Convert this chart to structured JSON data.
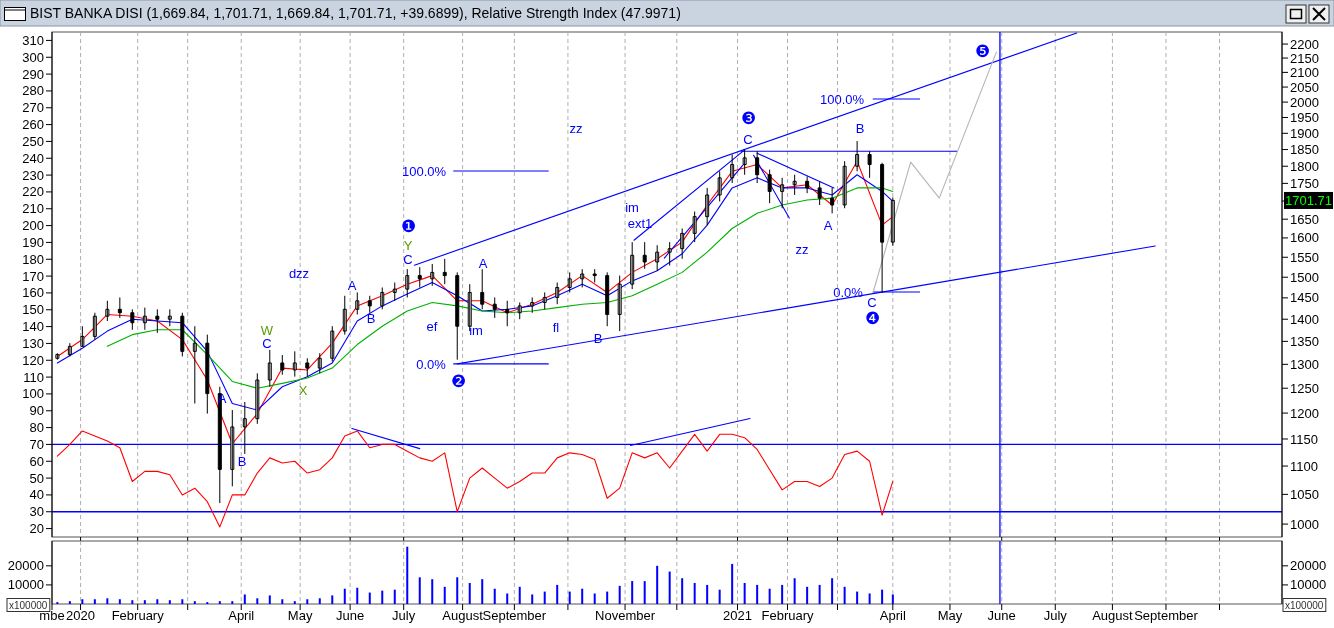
{
  "chart_data": [
    {
      "type": "candlestick",
      "title": "BIST BANKA DISI (1,669.84, 1,701.71, 1,669.84, 1,701.71, +39.6899), Relative Strength Index (47.9971)",
      "x": [
        "2019-12-20",
        "2019-12-27",
        "2020-01-03",
        "2020-01-10",
        "2020-01-17",
        "2020-01-24",
        "2020-01-31",
        "2020-02-07",
        "2020-02-14",
        "2020-02-21",
        "2020-02-28",
        "2020-03-06",
        "2020-03-13",
        "2020-03-20",
        "2020-03-27",
        "2020-04-03",
        "2020-04-10",
        "2020-04-17",
        "2020-04-24",
        "2020-05-01",
        "2020-05-08",
        "2020-05-15",
        "2020-05-22",
        "2020-05-29",
        "2020-06-05",
        "2020-06-12",
        "2020-06-19",
        "2020-06-26",
        "2020-07-03",
        "2020-07-10",
        "2020-07-17",
        "2020-07-24",
        "2020-07-31",
        "2020-08-07",
        "2020-08-14",
        "2020-08-21",
        "2020-08-28",
        "2020-09-04",
        "2020-09-11",
        "2020-09-18",
        "2020-09-25",
        "2020-10-02",
        "2020-10-09",
        "2020-10-16",
        "2020-10-23",
        "2020-10-30",
        "2020-11-06",
        "2020-11-13",
        "2020-11-20",
        "2020-11-27",
        "2020-12-04",
        "2020-12-11",
        "2020-12-18",
        "2020-12-25",
        "2021-01-01",
        "2021-01-08",
        "2021-01-15",
        "2021-01-22",
        "2021-01-29",
        "2021-02-05",
        "2021-02-12",
        "2021-02-19",
        "2021-02-26",
        "2021-03-05",
        "2021-03-12",
        "2021-03-19",
        "2021-03-26",
        "2021-04-01"
      ],
      "xlim": [
        "2019-12-17",
        "2021-11-05"
      ],
      "xticks": [
        "2020-01-02",
        "2020-02-03",
        "2020-03-02",
        "2020-04-01",
        "2020-05-04",
        "2020-06-01",
        "2020-07-01",
        "2020-08-03",
        "2020-09-01",
        "2020-10-01",
        "2020-11-02",
        "2020-12-01",
        "2021-01-04",
        "2021-02-01",
        "2021-03-01",
        "2021-04-01",
        "2021-05-03",
        "2021-06-01",
        "2021-07-01",
        "2021-08-02",
        "2021-09-01",
        "2021-10-01"
      ],
      "ylim": [
        15,
        315
      ],
      "yticks": [
        20,
        30,
        40,
        50,
        60,
        70,
        80,
        90,
        100,
        110,
        120,
        130,
        140,
        150,
        160,
        170,
        180,
        190,
        200,
        210,
        220,
        230,
        240,
        250,
        260,
        270,
        280,
        290,
        300,
        310
      ],
      "y2lim": [
        979,
        2244
      ],
      "y2ticks": [
        1000,
        1050,
        1100,
        1150,
        1200,
        1250,
        1300,
        1350,
        1400,
        1450,
        1500,
        1550,
        1600,
        1650,
        {
          "value": 1700,
          "label": null
        },
        1750,
        1800,
        1850,
        1900,
        1950,
        2000,
        2050,
        2100,
        2150,
        2200
      ],
      "log": "y2",
      "grid": "x",
      "tick_labels": "y",
      "series": [
        {
          "type": "candlestick",
          "axis": "y2",
          "color": "#000000",
          "ohlc": [
            [
              1313,
              1324,
              1310,
              1321
            ],
            [
              1321,
              1346,
              1317,
              1339
            ],
            [
              1339,
              1384,
              1339,
              1361
            ],
            [
              1361,
              1415,
              1354,
              1407
            ],
            [
              1407,
              1443,
              1396,
              1423
            ],
            [
              1423,
              1451,
              1403,
              1415
            ],
            [
              1415,
              1423,
              1376,
              1392
            ],
            [
              1392,
              1427,
              1376,
              1407
            ],
            [
              1407,
              1423,
              1369,
              1400
            ],
            [
              1400,
              1423,
              1384,
              1407
            ],
            [
              1407,
              1415,
              1317,
              1328
            ],
            [
              1328,
              1384,
              1219,
              1346
            ],
            [
              1346,
              1365,
              1199,
              1239
            ],
            [
              1239,
              1253,
              1035,
              1094
            ],
            [
              1094,
              1206,
              1064,
              1173
            ],
            [
              1173,
              1222,
              1122,
              1189
            ],
            [
              1189,
              1281,
              1179,
              1267
            ],
            [
              1267,
              1331,
              1253,
              1303
            ],
            [
              1303,
              1320,
              1278,
              1288
            ],
            [
              1288,
              1328,
              1274,
              1303
            ],
            [
              1303,
              1313,
              1274,
              1292
            ],
            [
              1292,
              1324,
              1281,
              1313
            ],
            [
              1313,
              1384,
              1306,
              1373
            ],
            [
              1373,
              1455,
              1365,
              1423
            ],
            [
              1423,
              1463,
              1411,
              1443
            ],
            [
              1443,
              1455,
              1415,
              1431
            ],
            [
              1431,
              1475,
              1423,
              1463
            ],
            [
              1463,
              1487,
              1443,
              1471
            ],
            [
              1471,
              1520,
              1451,
              1504
            ],
            [
              1504,
              1525,
              1475,
              1496
            ],
            [
              1496,
              1533,
              1479,
              1512
            ],
            [
              1512,
              1546,
              1483,
              1504
            ],
            [
              1504,
              1512,
              1310,
              1384
            ],
            [
              1384,
              1483,
              1373,
              1463
            ],
            [
              1463,
              1520,
              1423,
              1435
            ],
            [
              1435,
              1451,
              1403,
              1423
            ],
            [
              1423,
              1443,
              1384,
              1415
            ],
            [
              1415,
              1439,
              1400,
              1431
            ],
            [
              1431,
              1451,
              1415,
              1439
            ],
            [
              1439,
              1463,
              1423,
              1451
            ],
            [
              1451,
              1487,
              1435,
              1475
            ],
            [
              1475,
              1512,
              1463,
              1496
            ],
            [
              1496,
              1520,
              1475,
              1508
            ],
            [
              1508,
              1520,
              1487,
              1504
            ],
            [
              1504,
              1512,
              1384,
              1411
            ],
            [
              1411,
              1504,
              1373,
              1483
            ],
            [
              1483,
              1589,
              1471,
              1555
            ],
            [
              1555,
              1589,
              1521,
              1538
            ],
            [
              1538,
              1581,
              1516,
              1563
            ],
            [
              1563,
              1589,
              1529,
              1572
            ],
            [
              1572,
              1625,
              1546,
              1612
            ],
            [
              1612,
              1671,
              1589,
              1657
            ],
            [
              1657,
              1737,
              1634,
              1717
            ],
            [
              1717,
              1785,
              1699,
              1766
            ],
            [
              1766,
              1835,
              1751,
              1805
            ],
            [
              1805,
              1850,
              1775,
              1825
            ],
            [
              1825,
              1845,
              1751,
              1775
            ],
            [
              1775,
              1790,
              1694,
              1727
            ],
            [
              1727,
              1766,
              1680,
              1746
            ],
            [
              1746,
              1775,
              1717,
              1756
            ],
            [
              1756,
              1770,
              1722,
              1737
            ],
            [
              1737,
              1756,
              1689,
              1708
            ],
            [
              1708,
              1737,
              1666,
              1689
            ],
            [
              1689,
              1815,
              1680,
              1800
            ],
            [
              1800,
              1876,
              1785,
              1835
            ],
            [
              1835,
              1845,
              1766,
              1805
            ],
            [
              1805,
              1810,
              1463,
              1589
            ],
            [
              1589,
              1710,
              1580,
              1701.71
            ]
          ]
        },
        {
          "type": "line",
          "axis": "y2",
          "color": "#ff0000",
          "x": [
            "2019-12-20",
            "2020-01-03",
            "2020-01-17",
            "2020-01-31",
            "2020-02-14",
            "2020-02-28",
            "2020-03-13",
            "2020-03-27",
            "2020-04-10",
            "2020-04-24",
            "2020-05-08",
            "2020-05-22",
            "2020-06-05",
            "2020-06-19",
            "2020-07-03",
            "2020-07-17",
            "2020-07-31",
            "2020-08-14",
            "2020-08-28",
            "2020-09-11",
            "2020-09-25",
            "2020-10-09",
            "2020-10-23",
            "2020-11-06",
            "2020-11-20",
            "2020-12-04",
            "2020-12-18",
            "2021-01-01",
            "2021-01-15",
            "2021-01-29",
            "2021-02-12",
            "2021-02-26",
            "2021-03-12",
            "2021-03-26",
            "2021-04-01"
          ],
          "values": [
            1317,
            1354,
            1411,
            1407,
            1396,
            1354,
            1267,
            1141,
            1199,
            1292,
            1288,
            1346,
            1431,
            1455,
            1483,
            1504,
            1443,
            1443,
            1415,
            1435,
            1463,
            1504,
            1463,
            1512,
            1546,
            1589,
            1689,
            1785,
            1805,
            1737,
            1746,
            1689,
            1815,
            1634,
            1657
          ]
        },
        {
          "type": "line",
          "axis": "y2",
          "color": "#0000ff",
          "x": [
            "2019-12-20",
            "2020-01-03",
            "2020-01-17",
            "2020-01-31",
            "2020-02-14",
            "2020-02-28",
            "2020-03-13",
            "2020-03-27",
            "2020-04-10",
            "2020-04-24",
            "2020-05-08",
            "2020-05-22",
            "2020-06-05",
            "2020-06-19",
            "2020-07-03",
            "2020-07-17",
            "2020-07-31",
            "2020-08-14",
            "2020-08-28",
            "2020-09-11",
            "2020-09-25",
            "2020-10-09",
            "2020-10-23",
            "2020-11-06",
            "2020-11-20",
            "2020-12-04",
            "2020-12-18",
            "2021-01-01",
            "2021-01-15",
            "2021-01-29",
            "2021-02-12",
            "2021-02-26",
            "2021-03-12",
            "2021-03-26",
            "2021-04-01"
          ],
          "values": [
            1303,
            1335,
            1373,
            1400,
            1396,
            1392,
            1328,
            1219,
            1206,
            1253,
            1274,
            1303,
            1396,
            1431,
            1459,
            1487,
            1455,
            1419,
            1423,
            1431,
            1455,
            1483,
            1455,
            1491,
            1516,
            1559,
            1634,
            1737,
            1766,
            1737,
            1737,
            1717,
            1775,
            1727,
            1699
          ]
        },
        {
          "type": "line",
          "axis": "y2",
          "color": "#00b000",
          "x": [
            "2020-01-17",
            "2020-01-31",
            "2020-02-14",
            "2020-02-28",
            "2020-03-13",
            "2020-03-27",
            "2020-04-10",
            "2020-04-24",
            "2020-05-08",
            "2020-05-22",
            "2020-06-05",
            "2020-06-19",
            "2020-07-03",
            "2020-07-17",
            "2020-07-31",
            "2020-08-14",
            "2020-08-28",
            "2020-09-11",
            "2020-09-25",
            "2020-10-09",
            "2020-10-23",
            "2020-11-06",
            "2020-11-20",
            "2020-12-04",
            "2020-12-18",
            "2021-01-01",
            "2021-01-15",
            "2021-01-29",
            "2021-02-12",
            "2021-02-26",
            "2021-03-12",
            "2021-03-26",
            "2021-04-01"
          ],
          "values": [
            1339,
            1365,
            1376,
            1376,
            1321,
            1264,
            1250,
            1260,
            1271,
            1292,
            1343,
            1384,
            1419,
            1439,
            1431,
            1419,
            1415,
            1419,
            1427,
            1435,
            1439,
            1455,
            1483,
            1512,
            1563,
            1625,
            1666,
            1689,
            1703,
            1708,
            1737,
            1737,
            1727
          ]
        },
        {
          "type": "line",
          "color": "#ff0000",
          "values": [
            63,
            70,
            78,
            75,
            72,
            68,
            48,
            54,
            54,
            52,
            40,
            44,
            36,
            21,
            40,
            40,
            53,
            62,
            59,
            60,
            53,
            55,
            62,
            75,
            78,
            68,
            70,
            70,
            66,
            62,
            60,
            65,
            30,
            50,
            56,
            50,
            44,
            48,
            53,
            53,
            62,
            65,
            64,
            61,
            38,
            44,
            65,
            62,
            65,
            56,
            66,
            76,
            66,
            76,
            76,
            74,
            67,
            55,
            43,
            48,
            48,
            45,
            50,
            64,
            66,
            60,
            28,
            48
          ]
        },
        {
          "type": "line",
          "axis": "y2",
          "color": "#0000ff",
          "x": [
            "2020-07-07",
            "2021-07-13"
          ],
          "values": [
            1530,
            2240
          ]
        },
        {
          "type": "line",
          "axis": "y2",
          "color": "#0000ff",
          "x": [
            "2020-07-31",
            "2021-08-26"
          ],
          "values": [
            1301,
            1579
          ]
        },
        {
          "type": "line",
          "axis": "y2",
          "color": "#0000ff",
          "x": [
            "2020-07-29",
            "2020-09-20"
          ],
          "values": [
            1786,
            1786
          ]
        },
        {
          "type": "line",
          "axis": "y2",
          "color": "#0000ff",
          "x": [
            "2020-07-29",
            "2020-09-20"
          ],
          "values": [
            1301,
            1301
          ]
        },
        {
          "type": "line",
          "axis": "y2",
          "color": "#0000ff",
          "x": [
            "2021-03-21",
            "2021-04-16"
          ],
          "values": [
            2010,
            2010
          ]
        },
        {
          "type": "line",
          "axis": "y2",
          "color": "#0000ff",
          "x": [
            "2021-03-21",
            "2021-04-16"
          ],
          "values": [
            1464,
            1464
          ]
        },
        {
          "type": "line",
          "axis": "y2",
          "color": "#0000ff",
          "x": [
            "2021-01-06",
            "2021-05-07"
          ],
          "values": [
            1845,
            1845
          ]
        },
        {
          "type": "line",
          "axis": "y2",
          "color": "#0000ff",
          "x": [
            "2021-01-15",
            "2021-02-27"
          ],
          "values": [
            1839,
            1737
          ]
        },
        {
          "type": "line",
          "axis": "y2",
          "color": "#0000ff",
          "x": [
            "2021-01-13",
            "2021-02-02"
          ],
          "values": [
            1833,
            1653
          ]
        },
        {
          "type": "line",
          "axis": "y2",
          "color": "#0000ff",
          "x": [
            "2020-11-07",
            "2021-01-08"
          ],
          "values": [
            1594,
            1849
          ]
        },
        {
          "type": "line",
          "axis": "y2",
          "color": "#0000ff",
          "x": [
            "2020-11-24",
            "2021-01-07"
          ],
          "values": [
            1548,
            1803
          ]
        },
        {
          "type": "line",
          "axis": "y2",
          "color": "#b4b4b4",
          "x": [
            "2021-03-21",
            "2021-04-11",
            "2021-04-27",
            "2021-05-29"
          ],
          "values": [
            1464,
            1812,
            1708,
            2171
          ]
        },
        {
          "type": "line",
          "color": "#0000ff",
          "x": [
            "2020-06-02",
            "2020-07-10"
          ],
          "values": [
            79.5,
            67.5
          ]
        },
        {
          "type": "line",
          "color": "#0000ff",
          "x": [
            "2020-11-05",
            "2021-01-11"
          ],
          "values": [
            69.4,
            85.4
          ]
        }
      ],
      "ref_lines": [
        {
          "axis": "y",
          "value": 70,
          "color": "#0000ff"
        },
        {
          "axis": "y",
          "value": 30,
          "color": "#0000ff"
        },
        {
          "axis": "x",
          "value": "2021-05-31",
          "color": "#0000ff"
        }
      ],
      "annotations": [
        "1701.71",
        "zz",
        "dzz",
        "100.0%",
        "100.0%",
        "0.0%",
        "0.0%",
        "ef",
        "im",
        "fl",
        "im",
        "ext1",
        "zz",
        "A",
        "B",
        "W",
        "C",
        "X",
        "A",
        "B",
        "C",
        "Y",
        "❶",
        "❷",
        "A",
        "B",
        "❸",
        "C",
        "A",
        "B",
        "C",
        "❹",
        "❺"
      ]
    },
    {
      "type": "bar",
      "color": "#0000ff",
      "x": [
        "2019-12-20",
        "2019-12-27",
        "2020-01-03",
        "2020-01-10",
        "2020-01-17",
        "2020-01-24",
        "2020-01-31",
        "2020-02-07",
        "2020-02-14",
        "2020-02-21",
        "2020-02-28",
        "2020-03-06",
        "2020-03-13",
        "2020-03-20",
        "2020-03-27",
        "2020-04-03",
        "2020-04-10",
        "2020-04-17",
        "2020-04-24",
        "2020-05-01",
        "2020-05-08",
        "2020-05-15",
        "2020-05-22",
        "2020-05-29",
        "2020-06-05",
        "2020-06-12",
        "2020-06-19",
        "2020-06-26",
        "2020-07-03",
        "2020-07-10",
        "2020-07-17",
        "2020-07-24",
        "2020-07-31",
        "2020-08-07",
        "2020-08-14",
        "2020-08-21",
        "2020-08-28",
        "2020-09-04",
        "2020-09-11",
        "2020-09-18",
        "2020-09-25",
        "2020-10-02",
        "2020-10-09",
        "2020-10-16",
        "2020-10-23",
        "2020-10-30",
        "2020-11-06",
        "2020-11-13",
        "2020-11-20",
        "2020-11-27",
        "2020-12-04",
        "2020-12-11",
        "2020-12-18",
        "2020-12-25",
        "2021-01-01",
        "2021-01-08",
        "2021-01-15",
        "2021-01-22",
        "2021-01-29",
        "2021-02-05",
        "2021-02-12",
        "2021-02-19",
        "2021-02-26",
        "2021-03-05",
        "2021-03-12",
        "2021-03-19",
        "2021-03-26",
        "2021-04-01"
      ],
      "values": [
        1000,
        1500,
        2500,
        2500,
        3000,
        2500,
        2000,
        2000,
        2500,
        2000,
        2500,
        1500,
        1000,
        1500,
        1500,
        5000,
        3000,
        4500,
        2500,
        1500,
        2500,
        3000,
        4500,
        8000,
        8500,
        6000,
        7000,
        7500,
        30000,
        14000,
        13000,
        9000,
        14000,
        11000,
        13000,
        8000,
        5500,
        9000,
        5000,
        6500,
        10000,
        6500,
        8000,
        5500,
        6500,
        9500,
        12000,
        12000,
        20000,
        17000,
        13500,
        11000,
        10000,
        7500,
        21000,
        11000,
        10000,
        8000,
        10000,
        13500,
        9000,
        10000,
        13500,
        9000,
        6500,
        5500,
        7500,
        5000
      ],
      "xlim": [
        "2019-12-17",
        "2021-11-05"
      ],
      "xticks": [
        {
          "value": "2019-12-17",
          "label": "mbe"
        },
        {
          "value": "2020-01-02",
          "label": "2020"
        },
        {
          "value": "2020-02-03",
          "label": "February"
        },
        {
          "value": "2020-03-02",
          "label": null
        },
        {
          "value": "2020-04-01",
          "label": "April"
        },
        {
          "value": "2020-05-04",
          "label": "May"
        },
        {
          "value": "2020-06-01",
          "label": "June"
        },
        {
          "value": "2020-07-01",
          "label": "July"
        },
        {
          "value": "2020-08-03",
          "label": "August"
        },
        {
          "value": "2020-09-01",
          "label": "September"
        },
        {
          "value": "2020-10-01",
          "label": null
        },
        {
          "value": "2020-11-02",
          "label": "November"
        },
        {
          "value": "2020-12-01",
          "label": null
        },
        {
          "value": "2021-01-04",
          "label": "2021"
        },
        {
          "value": "2021-02-01",
          "label": "February"
        },
        {
          "value": "2021-03-01",
          "label": null
        },
        {
          "value": "2021-04-01",
          "label": "April"
        },
        {
          "value": "2021-05-03",
          "label": "May"
        },
        {
          "value": "2021-06-01",
          "label": "June"
        },
        {
          "value": "2021-07-01",
          "label": "July"
        },
        {
          "value": "2021-08-02",
          "label": "August"
        },
        {
          "value": "2021-09-01",
          "label": "September"
        },
        {
          "value": "2021-10-01",
          "label": null
        }
      ],
      "ylim": [
        0,
        33000
      ],
      "yticks": [
        10000,
        20000
      ],
      "y2lim": [
        0,
        33000
      ],
      "y2ticks": [
        10000,
        20000
      ],
      "grid": "x",
      "ref_lines": [
        {
          "axis": "x",
          "value": "2021-05-31",
          "color": "#0000ff"
        }
      ],
      "annotations": [
        "x100000",
        "x100000"
      ]
    }
  ]
}
